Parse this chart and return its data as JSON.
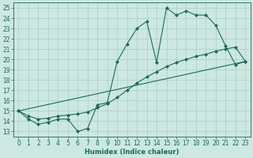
{
  "xlabel": "Humidex (Indice chaleur)",
  "bg_color": "#cce8e0",
  "line_color": "#1a6b5a",
  "grid_color": "#a8cfc4",
  "xlim": [
    -0.5,
    23.5
  ],
  "ylim": [
    12.5,
    25.5
  ],
  "yticks": [
    13,
    14,
    15,
    16,
    17,
    18,
    19,
    20,
    21,
    22,
    23,
    24,
    25
  ],
  "xticks": [
    0,
    1,
    2,
    3,
    4,
    5,
    6,
    7,
    8,
    9,
    10,
    11,
    12,
    13,
    14,
    15,
    16,
    17,
    18,
    19,
    20,
    21,
    22,
    23
  ],
  "line1_x": [
    0,
    1,
    2,
    3,
    4,
    5,
    6,
    7,
    8,
    9,
    10,
    11,
    12,
    13,
    14,
    15,
    16,
    17,
    18,
    19,
    20,
    21,
    22,
    23
  ],
  "line1_y": [
    15.0,
    14.2,
    13.7,
    13.9,
    14.2,
    14.2,
    13.0,
    13.3,
    15.6,
    15.8,
    19.8,
    21.5,
    23.0,
    23.7,
    19.7,
    25.0,
    24.3,
    24.7,
    24.3,
    24.3,
    23.3,
    21.3,
    19.5,
    19.8
  ],
  "line2_x": [
    0,
    1,
    2,
    3,
    4,
    5,
    6,
    7,
    8,
    9,
    10,
    11,
    12,
    13,
    14,
    15,
    16,
    17,
    18,
    19,
    20,
    21,
    22,
    23
  ],
  "line2_y": [
    15.0,
    14.5,
    14.2,
    14.3,
    14.5,
    14.6,
    14.7,
    14.9,
    15.3,
    15.7,
    16.3,
    17.0,
    17.7,
    18.3,
    18.8,
    19.3,
    19.7,
    20.0,
    20.3,
    20.5,
    20.8,
    21.0,
    21.2,
    19.8
  ],
  "line3_x": [
    0,
    23
  ],
  "line3_y": [
    15.0,
    19.8
  ]
}
